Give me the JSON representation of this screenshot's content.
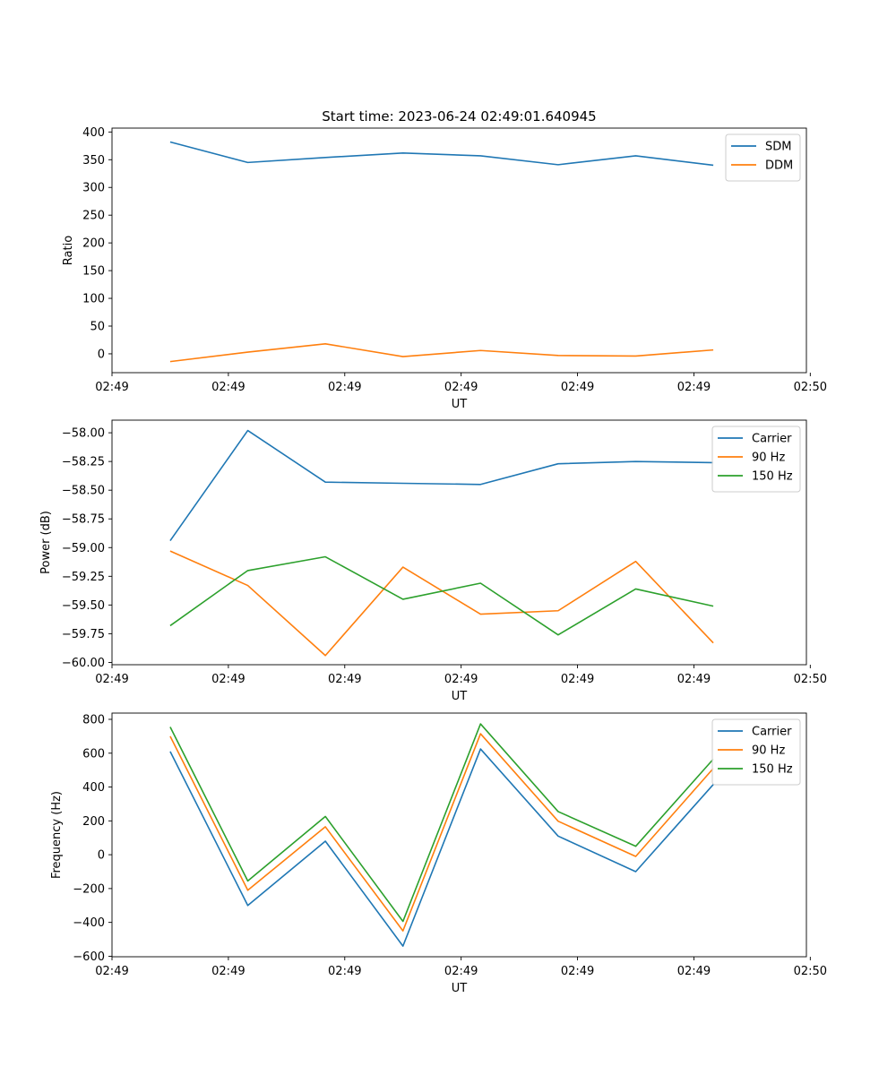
{
  "figure": {
    "title": "Start time: 2023-06-24 02:49:01.640945"
  },
  "chart_data": [
    {
      "type": "line",
      "title": "Start time: 2023-06-24 02:49:01.640945",
      "xlabel": "UT",
      "ylabel": "Ratio",
      "x": [
        1,
        2,
        3,
        4,
        5,
        6,
        7,
        8
      ],
      "xlim": [
        0.25,
        9.2
      ],
      "x_ticks": [
        0.25,
        1.75,
        3.25,
        4.75,
        6.25,
        7.75,
        9.25
      ],
      "x_tick_labels": [
        "02:49",
        "02:49",
        "02:49",
        "02:49",
        "02:49",
        "02:49",
        "02:50"
      ],
      "ylim": [
        -34,
        407
      ],
      "y_ticks": [
        0,
        50,
        100,
        150,
        200,
        250,
        300,
        350,
        400
      ],
      "y_tick_labels": [
        "0",
        "50",
        "100",
        "150",
        "200",
        "250",
        "300",
        "350",
        "400"
      ],
      "legend": "top-right",
      "grid": false,
      "series": [
        {
          "name": "SDM",
          "color": "#1f77b4",
          "values": [
            382,
            345,
            354,
            362,
            357,
            341,
            357,
            340
          ]
        },
        {
          "name": "DDM",
          "color": "#ff7f0e",
          "values": [
            -14,
            3,
            18,
            -5,
            6,
            -3,
            -4,
            7
          ]
        }
      ]
    },
    {
      "type": "line",
      "xlabel": "UT",
      "ylabel": "Power (dB)",
      "x": [
        1,
        2,
        3,
        4,
        5,
        6,
        7,
        8
      ],
      "xlim": [
        0.25,
        9.2
      ],
      "x_ticks": [
        0.25,
        1.75,
        3.25,
        4.75,
        6.25,
        7.75,
        9.25
      ],
      "x_tick_labels": [
        "02:49",
        "02:49",
        "02:49",
        "02:49",
        "02:49",
        "02:49",
        "02:50"
      ],
      "ylim": [
        -60.02,
        -57.89
      ],
      "y_ticks": [
        -60.0,
        -59.75,
        -59.5,
        -59.25,
        -59.0,
        -58.75,
        -58.5,
        -58.25,
        -58.0
      ],
      "y_tick_labels": [
        "−60.00",
        "−59.75",
        "−59.50",
        "−59.25",
        "−59.00",
        "−58.75",
        "−58.50",
        "−58.25",
        "−58.00"
      ],
      "legend": "top-right",
      "grid": false,
      "series": [
        {
          "name": "Carrier",
          "color": "#1f77b4",
          "values": [
            -58.94,
            -57.98,
            -58.43,
            -58.44,
            -58.45,
            -58.27,
            -58.25,
            -58.26
          ]
        },
        {
          "name": "90 Hz",
          "color": "#ff7f0e",
          "values": [
            -59.03,
            -59.33,
            -59.94,
            -59.17,
            -59.58,
            -59.55,
            -59.12,
            -59.83
          ]
        },
        {
          "name": "150 Hz",
          "color": "#2ca02c",
          "values": [
            -59.68,
            -59.2,
            -59.08,
            -59.45,
            -59.31,
            -59.76,
            -59.36,
            -59.51
          ]
        }
      ]
    },
    {
      "type": "line",
      "xlabel": "UT",
      "ylabel": "Frequency (Hz)",
      "x": [
        1,
        2,
        3,
        4,
        5,
        6,
        7,
        8
      ],
      "xlim": [
        0.25,
        9.2
      ],
      "x_ticks": [
        0.25,
        1.75,
        3.25,
        4.75,
        6.25,
        7.75,
        9.25
      ],
      "x_tick_labels": [
        "02:49",
        "02:49",
        "02:49",
        "02:49",
        "02:49",
        "02:49",
        "02:50"
      ],
      "ylim": [
        -603,
        837
      ],
      "y_ticks": [
        -600,
        -400,
        -200,
        0,
        200,
        400,
        600,
        800
      ],
      "y_tick_labels": [
        "−600",
        "−400",
        "−200",
        "0",
        "200",
        "400",
        "600",
        "800"
      ],
      "legend": "top-right",
      "grid": false,
      "series": [
        {
          "name": "Carrier",
          "color": "#1f77b4",
          "values": [
            610,
            -300,
            80,
            -540,
            625,
            110,
            -100,
            415
          ]
        },
        {
          "name": "90 Hz",
          "color": "#ff7f0e",
          "values": [
            700,
            -210,
            165,
            -450,
            715,
            198,
            -10,
            510
          ]
        },
        {
          "name": "150 Hz",
          "color": "#2ca02c",
          "values": [
            755,
            -155,
            226,
            -394,
            773,
            255,
            50,
            565
          ]
        }
      ]
    }
  ]
}
